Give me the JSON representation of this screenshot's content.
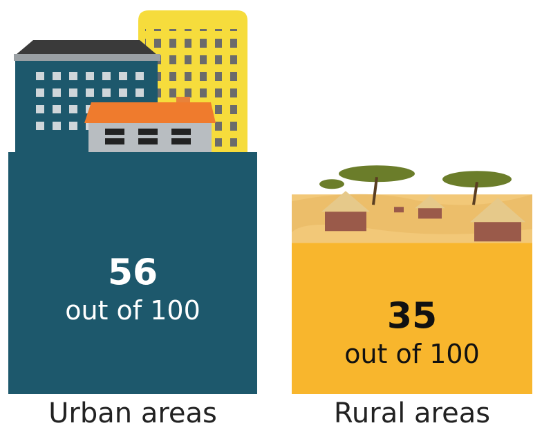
{
  "chart_data": {
    "type": "bar",
    "categories": [
      "Urban areas",
      "Rural areas"
    ],
    "values": [
      56,
      35
    ],
    "unit_label": "out of 100",
    "colors": [
      "#1d586c",
      "#f8b62d"
    ],
    "value_label_colors": [
      "#ffffff",
      "#111111"
    ]
  }
}
